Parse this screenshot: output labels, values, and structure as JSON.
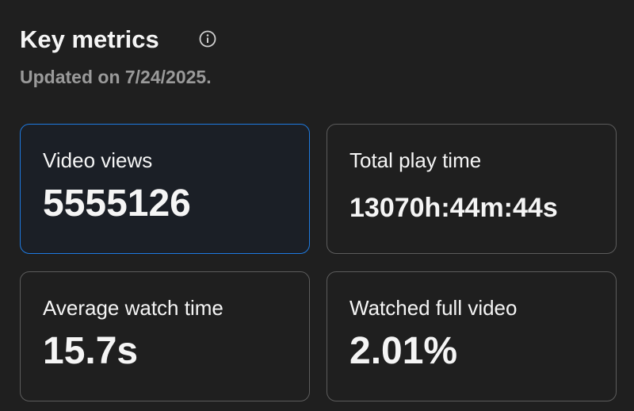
{
  "header": {
    "title": "Key metrics",
    "subtitle": "Updated on 7/24/2025."
  },
  "metrics": [
    {
      "label": "Video views",
      "value": "5555126"
    },
    {
      "label": "Total play time",
      "value": "13070h:44m:44s"
    },
    {
      "label": "Average watch time",
      "value": "15.7s"
    },
    {
      "label": "Watched full video",
      "value": "2.01%"
    }
  ]
}
